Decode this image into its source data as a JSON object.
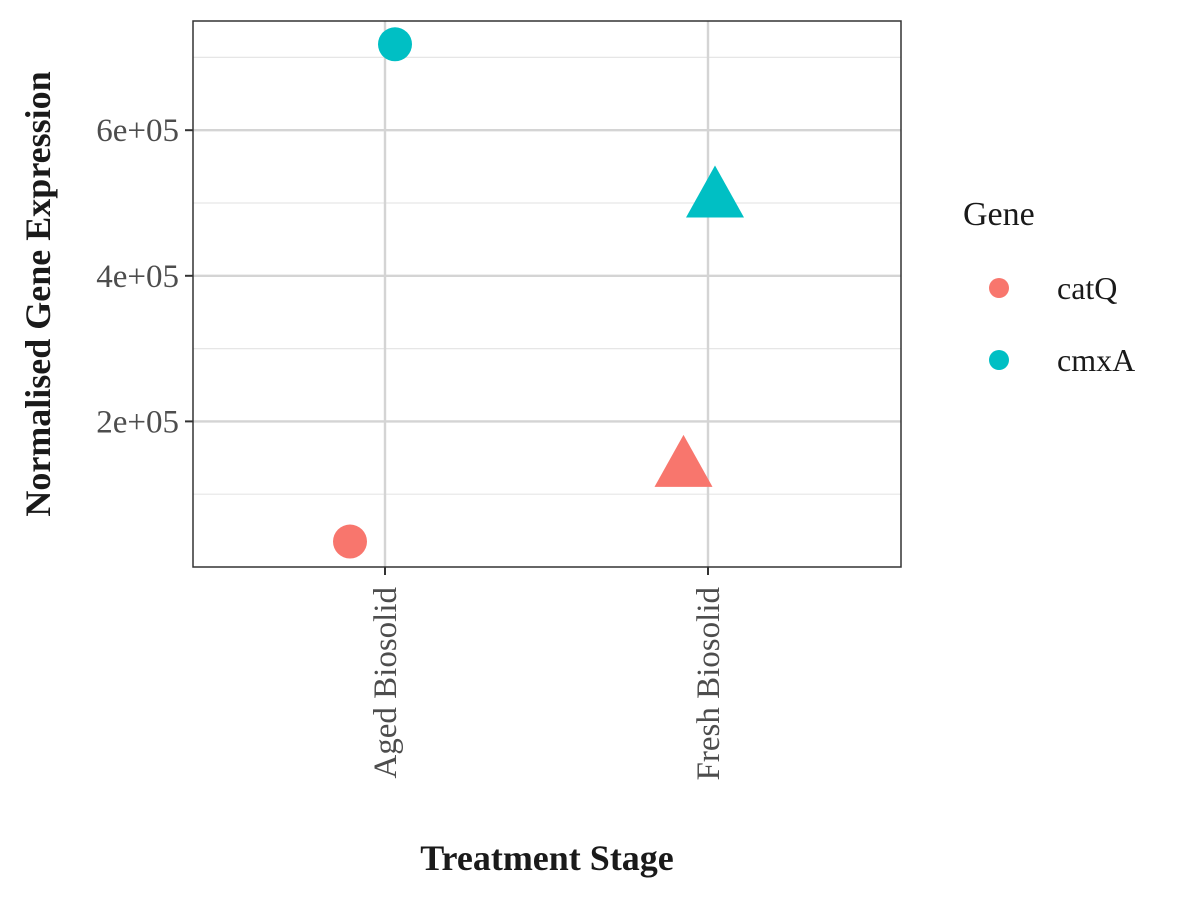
{
  "chart_data": {
    "type": "scatter",
    "title": "",
    "xlabel": "Treatment Stage",
    "ylabel": "Normalised Gene Expression",
    "categories": [
      "Aged Biosolid",
      "Fresh Biosolid"
    ],
    "ylim": [
      0,
      750000
    ],
    "yticks": [
      200000,
      400000,
      600000
    ],
    "ytick_labels": [
      "2e+05",
      "4e+05",
      "6e+05"
    ],
    "grid": true,
    "legend": {
      "title": "Gene",
      "position": "right"
    },
    "series": [
      {
        "name": "catQ",
        "color": "#F8766D",
        "points": [
          {
            "category": "Aged Biosolid",
            "y": 35000,
            "shape": "circle"
          },
          {
            "category": "Fresh Biosolid",
            "y": 140000,
            "shape": "triangle"
          }
        ]
      },
      {
        "name": "cmxA",
        "color": "#00BFC4",
        "points": [
          {
            "category": "Aged Biosolid",
            "y": 718000,
            "shape": "circle"
          },
          {
            "category": "Fresh Biosolid",
            "y": 510000,
            "shape": "triangle"
          }
        ]
      }
    ]
  }
}
